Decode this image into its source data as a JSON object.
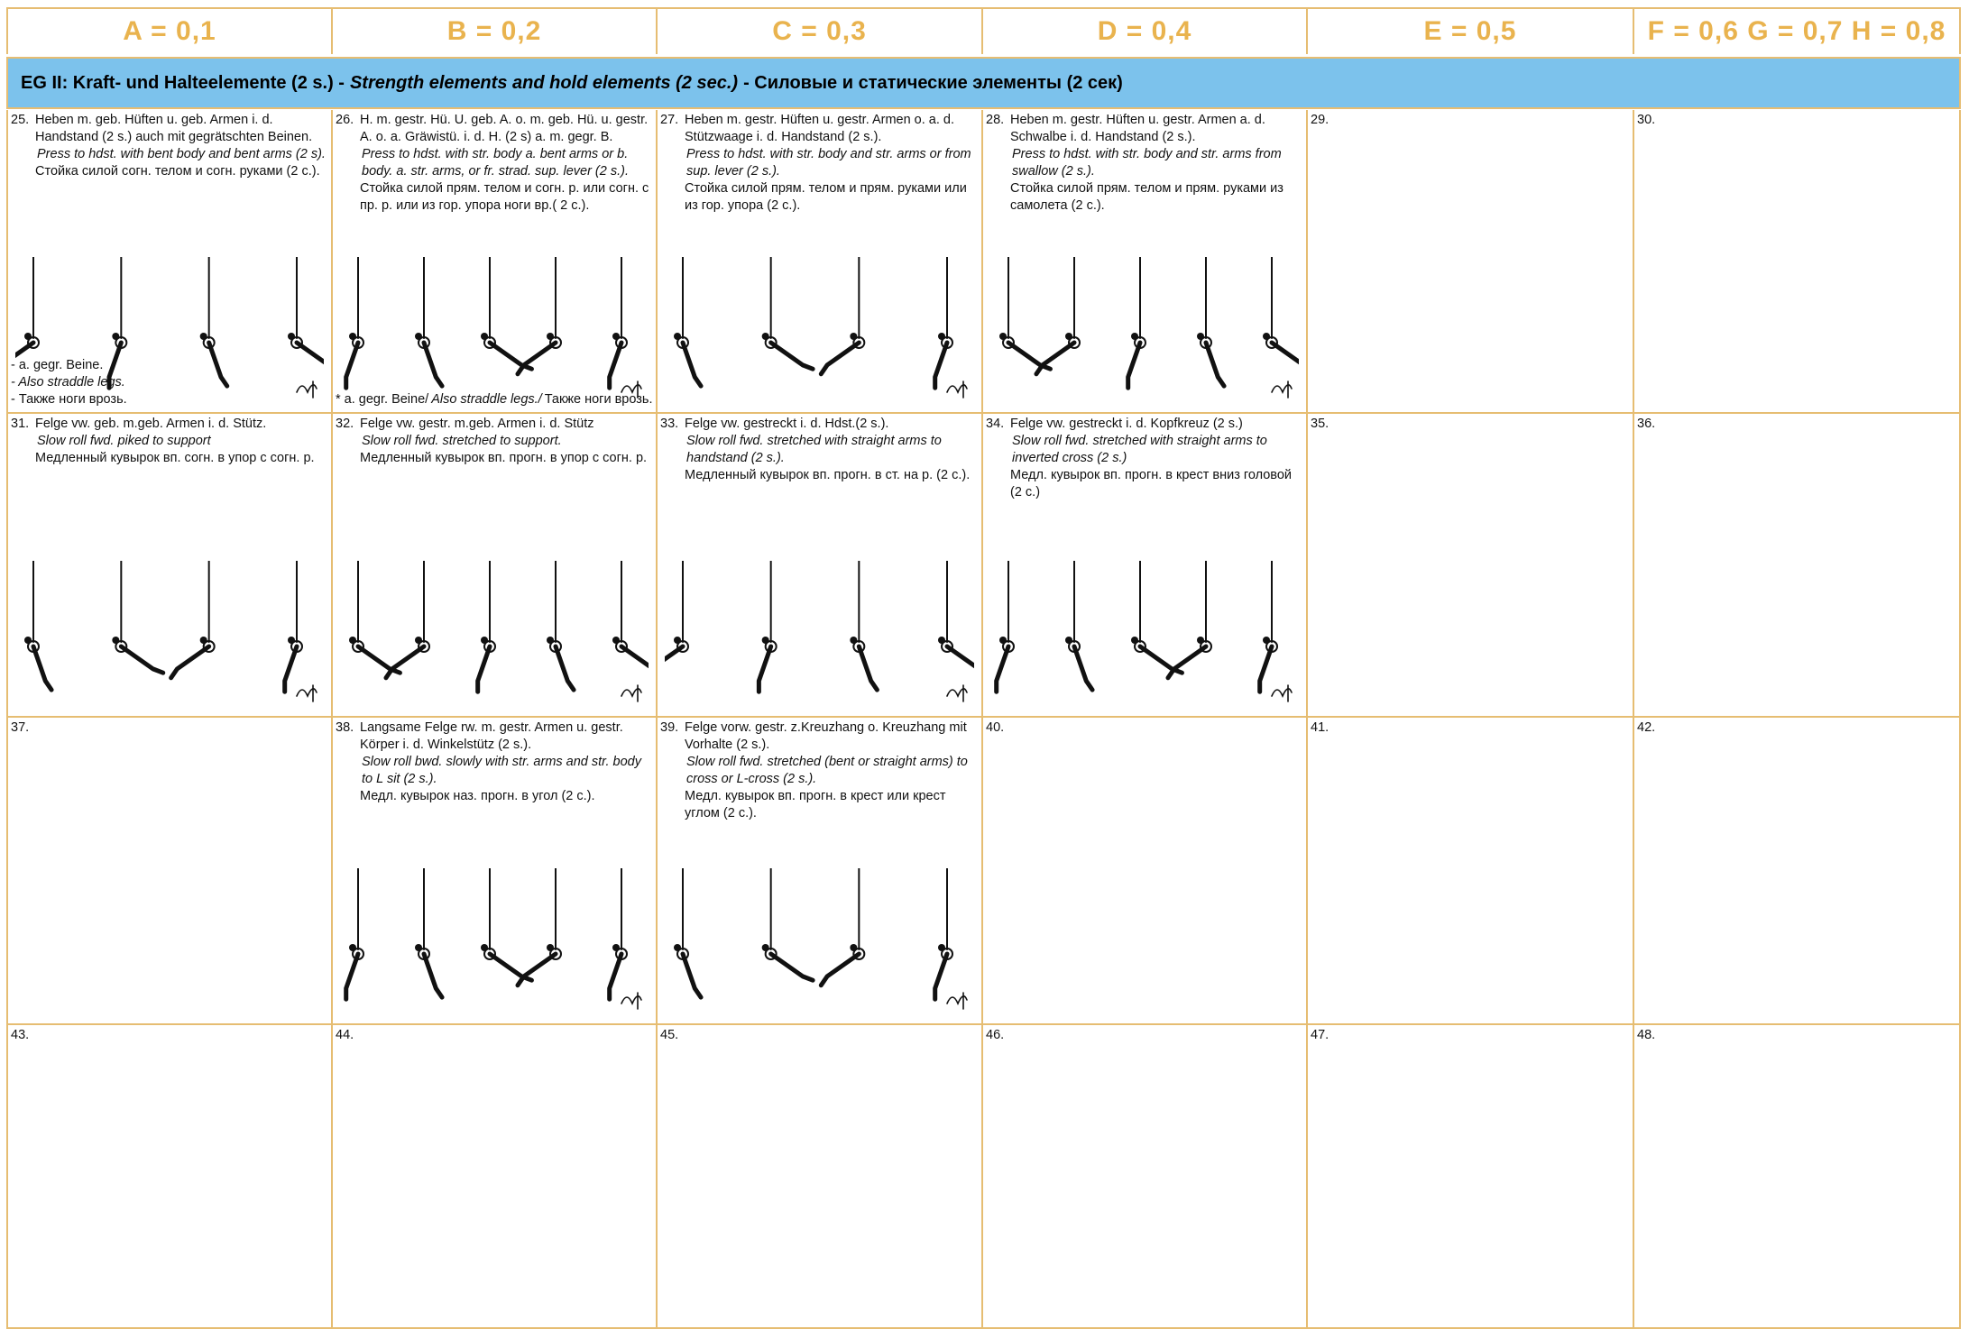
{
  "header": {
    "columns": [
      "A = 0,1",
      "B = 0,2",
      "C = 0,3",
      "D = 0,4",
      "E = 0,5",
      "F = 0,6 G = 0,7 H = 0,8"
    ]
  },
  "banner": {
    "de": "EG II:  Kraft- und Halteelemente (2 s.) -",
    "en": "Strength elements and hold elements (2 sec.)",
    "ru": "- Силовые и статические элементы (2 сек)"
  },
  "table": {
    "rows": [
      [
        {
          "number": "25.",
          "de": "Heben m. geb. Hüften u. geb. Armen i. d. Handstand (2 s.) auch mit gegrätschten Beinen.",
          "en": "Press to hdst. with bent body and bent arms (2 s).",
          "ru": "Стойка силой согн. телом и согн. руками (2 с.).",
          "notes": [
            "- a. gegr. Beine.",
            "- Also straddle legs.",
            "- Также ноги врозь."
          ]
        },
        {
          "number": "26.",
          "de": "H. m. gestr. Hü. U. geb. A. o. m. geb. Hü. u. gestr. A. o. a. Gräwistü. i. d. H. (2 s) a. m. gegr. B.",
          "en": "Press to hdst. with str. body a. bent arms or b. body. a. str. arms, or fr. strad. sup. lever (2 s.).",
          "ru": "Стойка силой прям. телом и согн. р. или согн. с пр. р. или из гор. упора ноги вр.( 2 с.).",
          "notes": [
            "* a. gegr. Beine/",
            "Also straddle legs./",
            "Также ноги врозь."
          ]
        },
        {
          "number": "27.",
          "de": "Heben m. gestr. Hüften u. gestr. Armen o. a. d. Stützwaage i. d. Handstand (2 s.).",
          "en": "Press to hdst. with str. body and str. arms or from sup. lever (2 s.).",
          "ru": "Стойка силой прям. телом и прям. руками или из гор. упора (2 с.)."
        },
        {
          "number": "28.",
          "de": "Heben m. gestr. Hüften u. gestr. Armen a. d. Schwalbe i. d. Handstand (2 s.).",
          "en": "Press to hdst. with str. body and str. arms from swallow (2 s.).",
          "ru": "Стойка силой прям. телом и прям. руками из самолета (2 с.)."
        },
        {
          "number": "29."
        },
        {
          "number": "30."
        }
      ],
      [
        {
          "number": "31.",
          "de": "Felge vw. geb. m.geb. Armen i. d. Stütz.",
          "en": "Slow roll fwd. piked to support",
          "ru": "Медленный кувырок вп. согн. в упор с согн. р."
        },
        {
          "number": "32.",
          "de": "Felge vw. gestr. m.geb. Armen i. d. Stütz",
          "en": "Slow roll fwd. stretched to support.",
          "ru": "Медленный кувырок вп. прогн. в упор с согн. р."
        },
        {
          "number": "33.",
          "de": "Felge vw. gestreckt i. d. Hdst.(2 s.).",
          "en": "Slow roll fwd. stretched with straight arms to handstand (2 s.).",
          "ru": "Медленный кувырок вп. прогн. в ст. на р. (2 с.)."
        },
        {
          "number": "34.",
          "de": "Felge vw. gestreckt i. d. Kopfkreuz (2 s.)",
          "en": "Slow roll fwd. stretched with straight arms to inverted cross (2 s.)",
          "ru": "Медл. кувырок вп. прогн. в крест вниз головой (2 с.)"
        },
        {
          "number": "35."
        },
        {
          "number": "36."
        }
      ],
      [
        {
          "number": "37."
        },
        {
          "number": "38.",
          "de": "Langsame Felge rw. m. gestr. Armen u. gestr. Körper i. d. Winkelstütz (2 s.).",
          "en": "Slow roll bwd. slowly with str. arms and str. body to L sit (2 s.).",
          "ru": "Медл. кувырок наз. прогн. в угол (2 с.)."
        },
        {
          "number": "39.",
          "de": "Felge vorw. gestr. z.Kreuzhang o. Kreuzhang mit Vorhalte (2 s.).",
          "en": "Slow roll fwd. stretched (bent or straight arms) to cross or L-cross (2 s.).",
          "ru": "Медл. кувырок вп. прогн. в крест или крест углом (2 с.)."
        },
        {
          "number": "40."
        },
        {
          "number": "41."
        },
        {
          "number": "42."
        }
      ],
      [
        {
          "number": "43."
        },
        {
          "number": "44."
        },
        {
          "number": "45."
        },
        {
          "number": "46."
        },
        {
          "number": "47."
        },
        {
          "number": "48."
        }
      ]
    ]
  }
}
